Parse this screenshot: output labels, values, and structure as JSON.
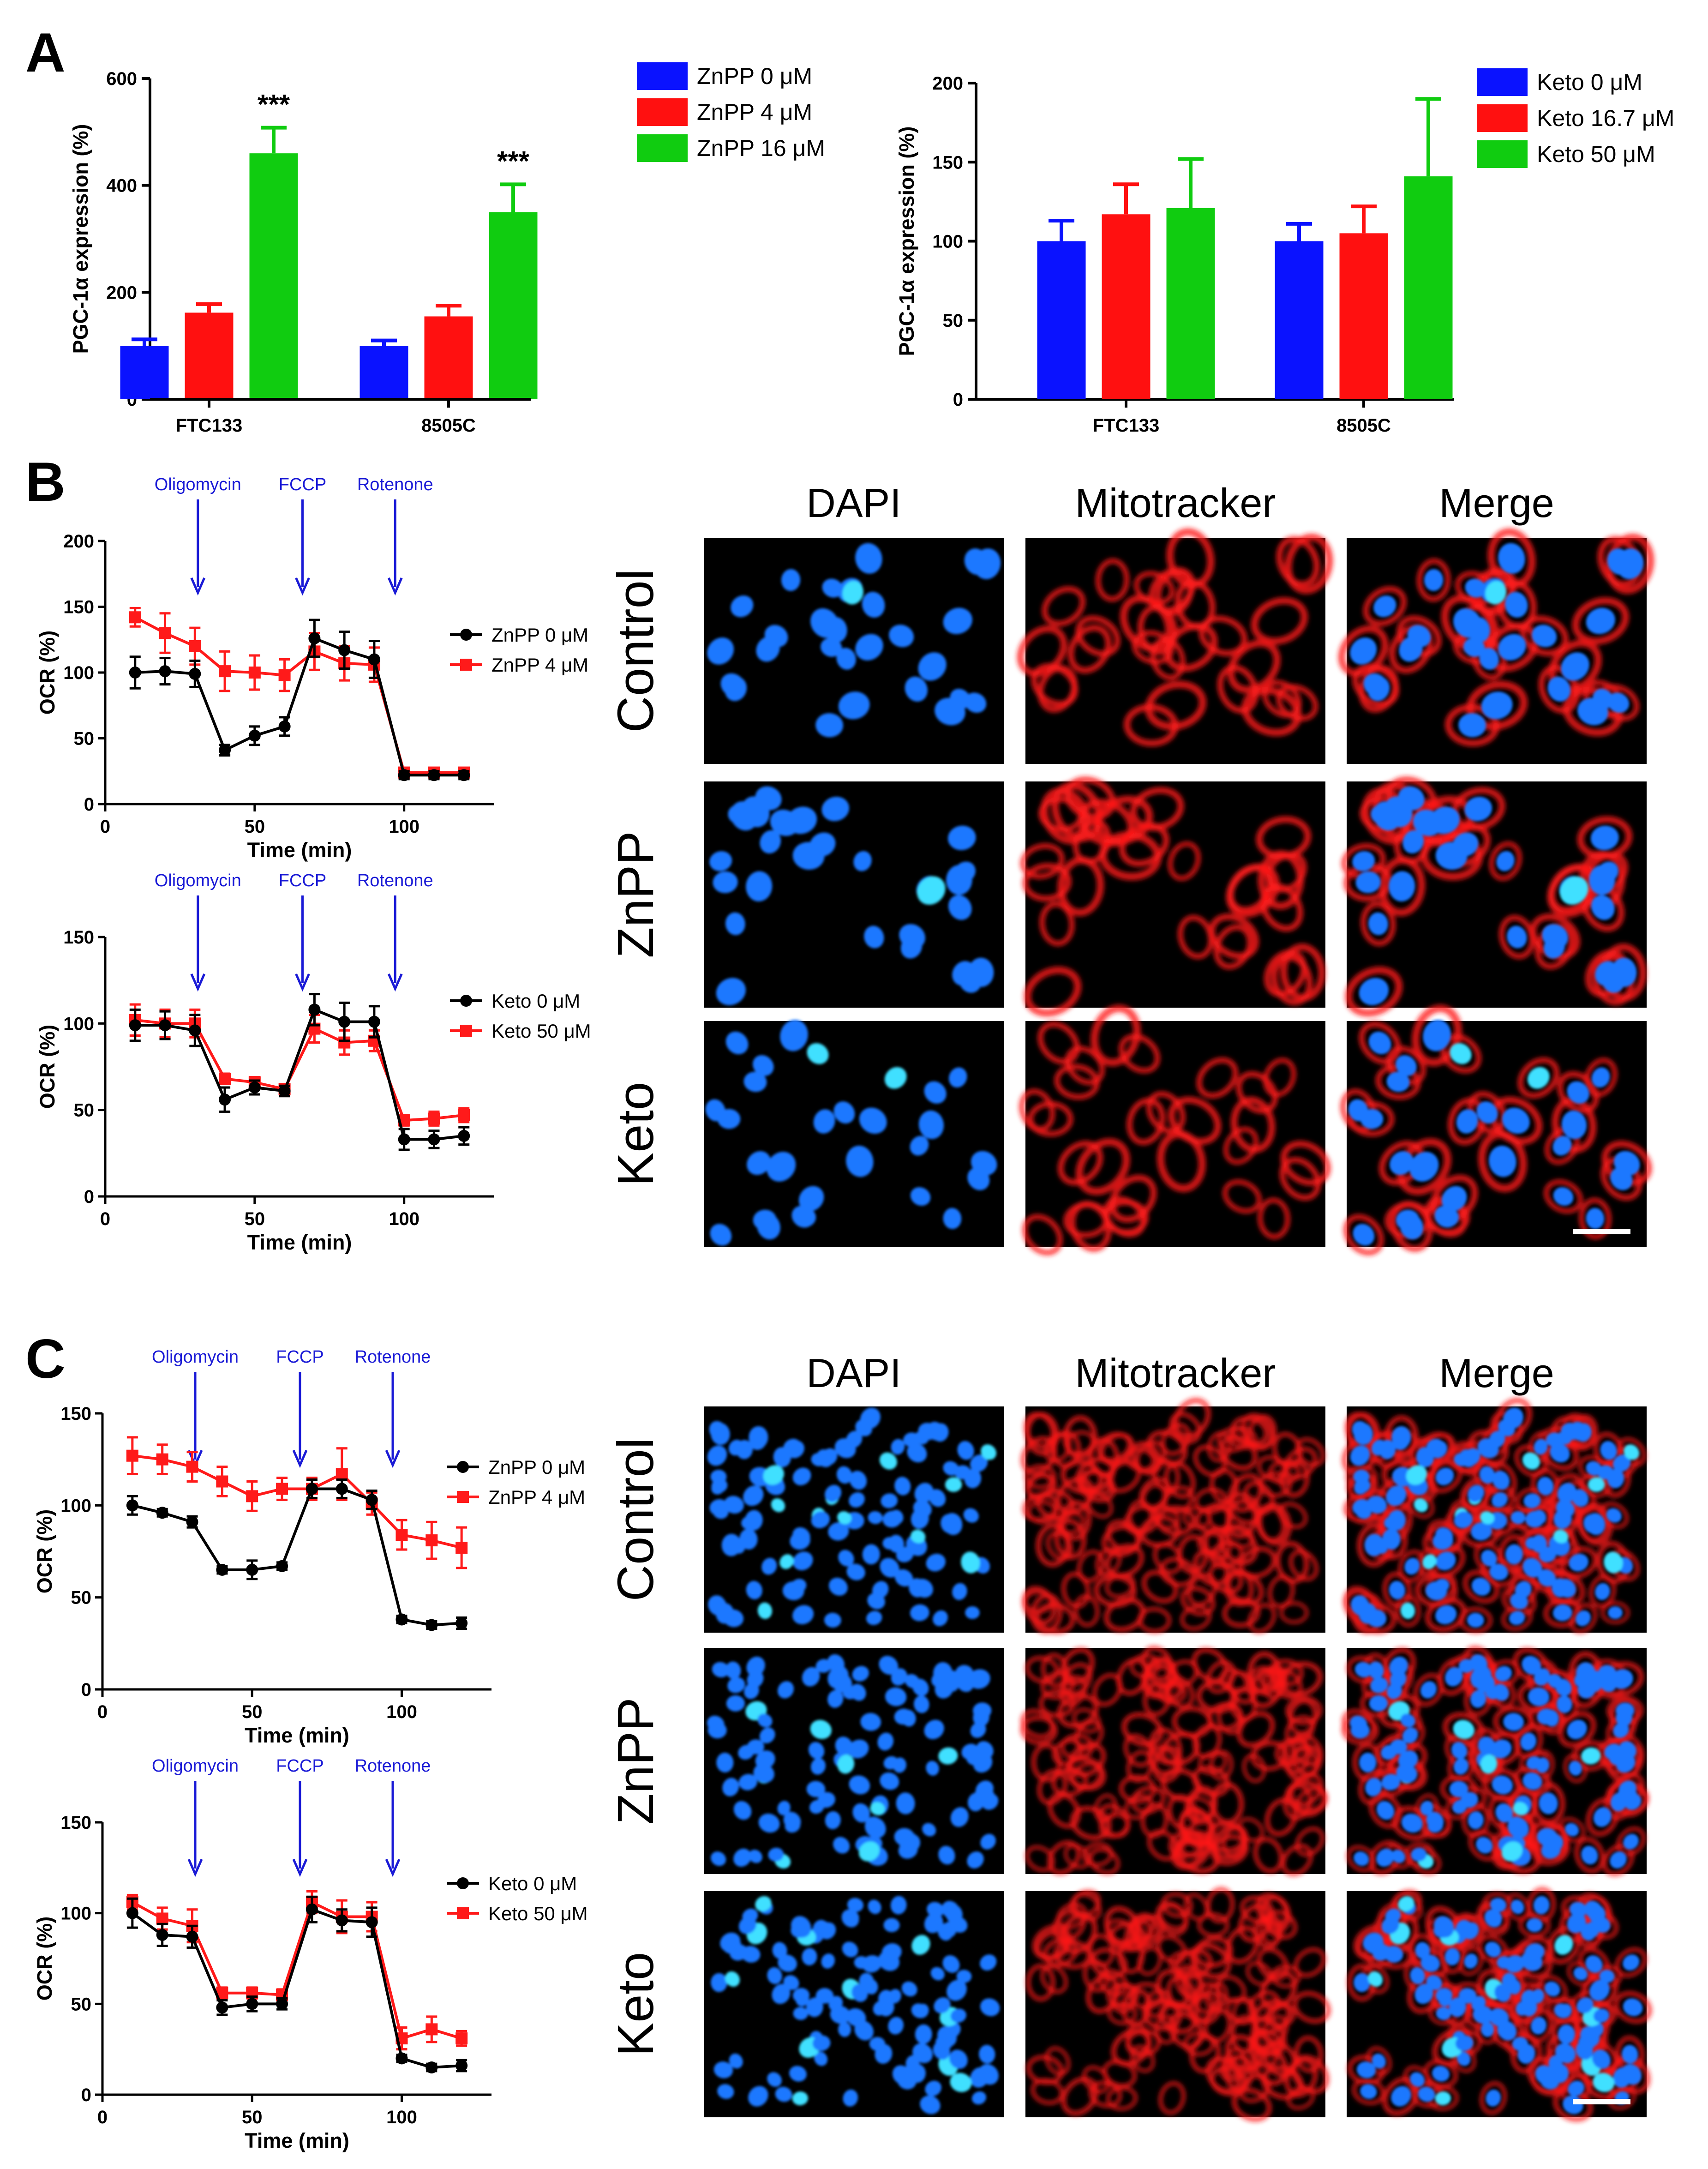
{
  "panels": {
    "a": "A",
    "b": "B",
    "c": "C"
  },
  "chart_data": [
    {
      "id": "a1",
      "type": "bar",
      "ylabel": "PGC-1α expression (%)",
      "xlabel": "",
      "ylim": [
        0,
        600
      ],
      "yticks": [
        0,
        200,
        400,
        600
      ],
      "categories": [
        "FTC133",
        "8505C"
      ],
      "series": [
        {
          "name": "ZnPP 0 μM",
          "color": "#0a12ff",
          "values": [
            100,
            100
          ],
          "errors": [
            12,
            10
          ]
        },
        {
          "name": "ZnPP 4 μM",
          "color": "#ff1010",
          "values": [
            162,
            155
          ],
          "errors": [
            16,
            20
          ]
        },
        {
          "name": "ZnPP 16 μM",
          "color": "#10cc10",
          "values": [
            460,
            350
          ],
          "errors": [
            48,
            52
          ]
        }
      ],
      "annotations": [
        {
          "category": 0,
          "series": 2,
          "text": "***"
        },
        {
          "category": 1,
          "series": 2,
          "text": "***"
        }
      ]
    },
    {
      "id": "a2",
      "type": "bar",
      "ylabel": "PGC-1α expression (%)",
      "xlabel": "",
      "ylim": [
        0,
        200
      ],
      "yticks": [
        0,
        50,
        100,
        150,
        200
      ],
      "categories": [
        "FTC133",
        "8505C"
      ],
      "series": [
        {
          "name": "Keto 0 μM",
          "color": "#0a12ff",
          "values": [
            100,
            100
          ],
          "errors": [
            13,
            11
          ]
        },
        {
          "name": "Keto 16.7 μM",
          "color": "#ff1010",
          "values": [
            117,
            105
          ],
          "errors": [
            19,
            17
          ]
        },
        {
          "name": "Keto 50 μM",
          "color": "#10cc10",
          "values": [
            121,
            141
          ],
          "errors": [
            31,
            49
          ]
        }
      ],
      "annotations": []
    },
    {
      "id": "b1",
      "type": "line",
      "xlabel": "Time (min)",
      "ylabel": "OCR (%)",
      "xlim": [
        0,
        130
      ],
      "xticks": [
        0,
        50,
        100
      ],
      "ylim": [
        0,
        200
      ],
      "yticks": [
        0,
        50,
        100,
        150,
        200
      ],
      "x": [
        10,
        20,
        30,
        40,
        50,
        60,
        70,
        80,
        90,
        100,
        110,
        120
      ],
      "series": [
        {
          "name": "ZnPP 0 μM",
          "color": "#000000",
          "marker": "circle",
          "values": [
            100,
            101,
            99,
            41,
            52,
            59,
            126,
            117,
            110,
            22,
            22,
            22
          ],
          "errors": [
            12,
            10,
            10,
            4,
            7,
            7,
            14,
            14,
            14,
            3,
            3,
            3
          ]
        },
        {
          "name": "ZnPP 4 μM",
          "color": "#ff1a1a",
          "marker": "square",
          "values": [
            142,
            130,
            120,
            101,
            100,
            98,
            116,
            107,
            106,
            24,
            24,
            24
          ],
          "errors": [
            7,
            15,
            14,
            15,
            13,
            12,
            14,
            13,
            13,
            3,
            3,
            3
          ]
        }
      ],
      "events": [
        {
          "label": "Oligomycin",
          "x": 31
        },
        {
          "label": "FCCP",
          "x": 66
        },
        {
          "label": "Rotenone",
          "x": 97
        }
      ]
    },
    {
      "id": "b2",
      "type": "line",
      "xlabel": "Time (min)",
      "ylabel": "OCR (%)",
      "xlim": [
        0,
        130
      ],
      "xticks": [
        0,
        50,
        100
      ],
      "ylim": [
        0,
        150
      ],
      "yticks": [
        0,
        50,
        100,
        150
      ],
      "x": [
        10,
        20,
        30,
        40,
        50,
        60,
        70,
        80,
        90,
        100,
        110,
        120
      ],
      "series": [
        {
          "name": "Keto 0 μM",
          "color": "#000000",
          "marker": "circle",
          "values": [
            99,
            99,
            96,
            56,
            63,
            61,
            108,
            101,
            101,
            33,
            33,
            35
          ],
          "errors": [
            9,
            8,
            9,
            7,
            4,
            3,
            9,
            11,
            9,
            6,
            5,
            5
          ]
        },
        {
          "name": "Keto 50 μM",
          "color": "#ff1a1a",
          "marker": "square",
          "values": [
            102,
            100,
            100,
            68,
            66,
            62,
            97,
            89,
            90,
            44,
            45,
            47
          ],
          "errors": [
            9,
            8,
            8,
            3,
            3,
            3,
            8,
            7,
            6,
            3,
            4,
            4
          ]
        }
      ],
      "events": [
        {
          "label": "Oligomycin",
          "x": 31
        },
        {
          "label": "FCCP",
          "x": 66
        },
        {
          "label": "Rotenone",
          "x": 97
        }
      ]
    },
    {
      "id": "c1",
      "type": "line",
      "xlabel": "Time (min)",
      "ylabel": "OCR (%)",
      "xlim": [
        0,
        130
      ],
      "xticks": [
        0,
        50,
        100
      ],
      "ylim": [
        0,
        150
      ],
      "yticks": [
        0,
        50,
        100,
        150
      ],
      "x": [
        10,
        20,
        30,
        40,
        50,
        60,
        70,
        80,
        90,
        100,
        110,
        120
      ],
      "series": [
        {
          "name": "ZnPP 0 μM",
          "color": "#000000",
          "marker": "circle",
          "values": [
            100,
            96,
            91,
            65,
            65,
            67,
            109,
            109,
            103,
            38,
            35,
            36
          ],
          "errors": [
            5,
            2,
            3,
            2,
            5,
            2,
            5,
            5,
            5,
            2,
            2,
            3
          ]
        },
        {
          "name": "ZnPP 4 μM",
          "color": "#ff1a1a",
          "marker": "square",
          "values": [
            127,
            125,
            121,
            113,
            105,
            109,
            109,
            117,
            101,
            84,
            81,
            77
          ],
          "errors": [
            10,
            8,
            8,
            8,
            8,
            6,
            6,
            14,
            6,
            8,
            10,
            11
          ]
        }
      ],
      "events": [
        {
          "label": "Oligomycin",
          "x": 31
        },
        {
          "label": "FCCP",
          "x": 66
        },
        {
          "label": "Rotenone",
          "x": 97
        }
      ]
    },
    {
      "id": "c2",
      "type": "line",
      "xlabel": "Time (min)",
      "ylabel": "OCR (%)",
      "xlim": [
        0,
        130
      ],
      "xticks": [
        0,
        50,
        100
      ],
      "ylim": [
        0,
        150
      ],
      "yticks": [
        0,
        50,
        100,
        150
      ],
      "x": [
        10,
        20,
        30,
        40,
        50,
        60,
        70,
        80,
        90,
        100,
        110,
        120
      ],
      "series": [
        {
          "name": "Keto 0 μM",
          "color": "#000000",
          "marker": "circle",
          "values": [
            100,
            88,
            87,
            48,
            50,
            50,
            102,
            96,
            95,
            20,
            15,
            16
          ],
          "errors": [
            8,
            6,
            6,
            4,
            4,
            3,
            7,
            6,
            8,
            2,
            2,
            3
          ]
        },
        {
          "name": "Keto 50 μM",
          "color": "#ff1a1a",
          "marker": "square",
          "values": [
            106,
            97,
            93,
            56,
            56,
            55,
            106,
            98,
            98,
            31,
            36,
            31
          ],
          "errors": [
            4,
            6,
            9,
            3,
            3,
            3,
            6,
            9,
            8,
            6,
            7,
            4
          ]
        }
      ],
      "events": [
        {
          "label": "Oligomycin",
          "x": 31
        },
        {
          "label": "FCCP",
          "x": 66
        },
        {
          "label": "Rotenone",
          "x": 97
        }
      ]
    }
  ],
  "micrographs": {
    "columns": [
      "DAPI",
      "Mitotracker",
      "Merge"
    ],
    "rows": [
      "Control",
      "ZnPP",
      "Keto"
    ],
    "colors": {
      "nucleus": "#1e78ff",
      "nucleus_bright": "#3fe0ff",
      "mito": "#ff1a1a",
      "background": "#000000",
      "scale_bar": "#ffffff"
    }
  }
}
